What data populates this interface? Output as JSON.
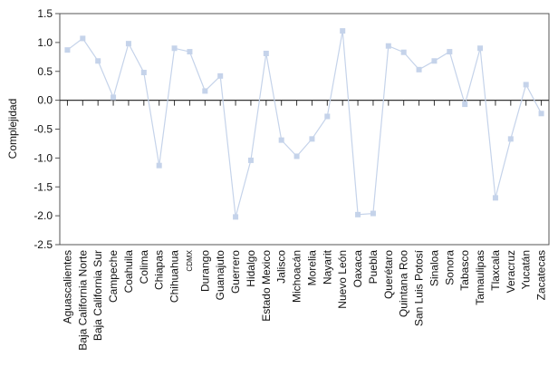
{
  "chart_data": {
    "type": "line",
    "title": "",
    "xlabel": "",
    "ylabel": "Complejidad",
    "ylim": [
      -2.5,
      1.5
    ],
    "yticks": [
      "1.5",
      "1.0",
      "0.5",
      "0.0",
      "-0.5",
      "-1.0",
      "-1.5",
      "-2.0",
      "-2.5"
    ],
    "ytick_values": [
      1.5,
      1.0,
      0.5,
      0.0,
      -0.5,
      -1.0,
      -1.5,
      -2.0,
      -2.5
    ],
    "grid": false,
    "legend": "none",
    "line_color": "#c5d3ea",
    "marker_color": "#c5d3ea",
    "categories": [
      "Aguascalientes",
      "Baja California Norte",
      "Baja California Sur",
      "Campeche",
      "Coahuila",
      "Colima",
      "Chiapas",
      "Chihuahua",
      "CDMX",
      "Durango",
      "Guanajuto",
      "Guerrero",
      "Hidalgo",
      "Estado Mexico",
      "Jalisco",
      "Michoacán",
      "Morelia",
      "Nayarit",
      "Nuevo León",
      "Oaxaca",
      "Puebla",
      "Querétaro",
      "Quintana Roo",
      "San Luis Potosí",
      "Sinaloa",
      "Sonora",
      "Tabasco",
      "Tamaulipas",
      "Tlaxcala",
      "Veracruz",
      "Yucatán",
      "Zacatecas"
    ],
    "values": [
      0.87,
      1.07,
      0.68,
      0.05,
      0.98,
      0.48,
      -1.13,
      0.9,
      0.84,
      0.16,
      0.42,
      -2.02,
      -1.04,
      0.81,
      -0.69,
      -0.97,
      -0.67,
      -0.28,
      1.2,
      -1.98,
      -1.96,
      0.94,
      0.83,
      0.53,
      0.68,
      0.84,
      -0.07,
      0.9,
      -1.69,
      -0.67,
      0.27,
      -0.23
    ]
  }
}
